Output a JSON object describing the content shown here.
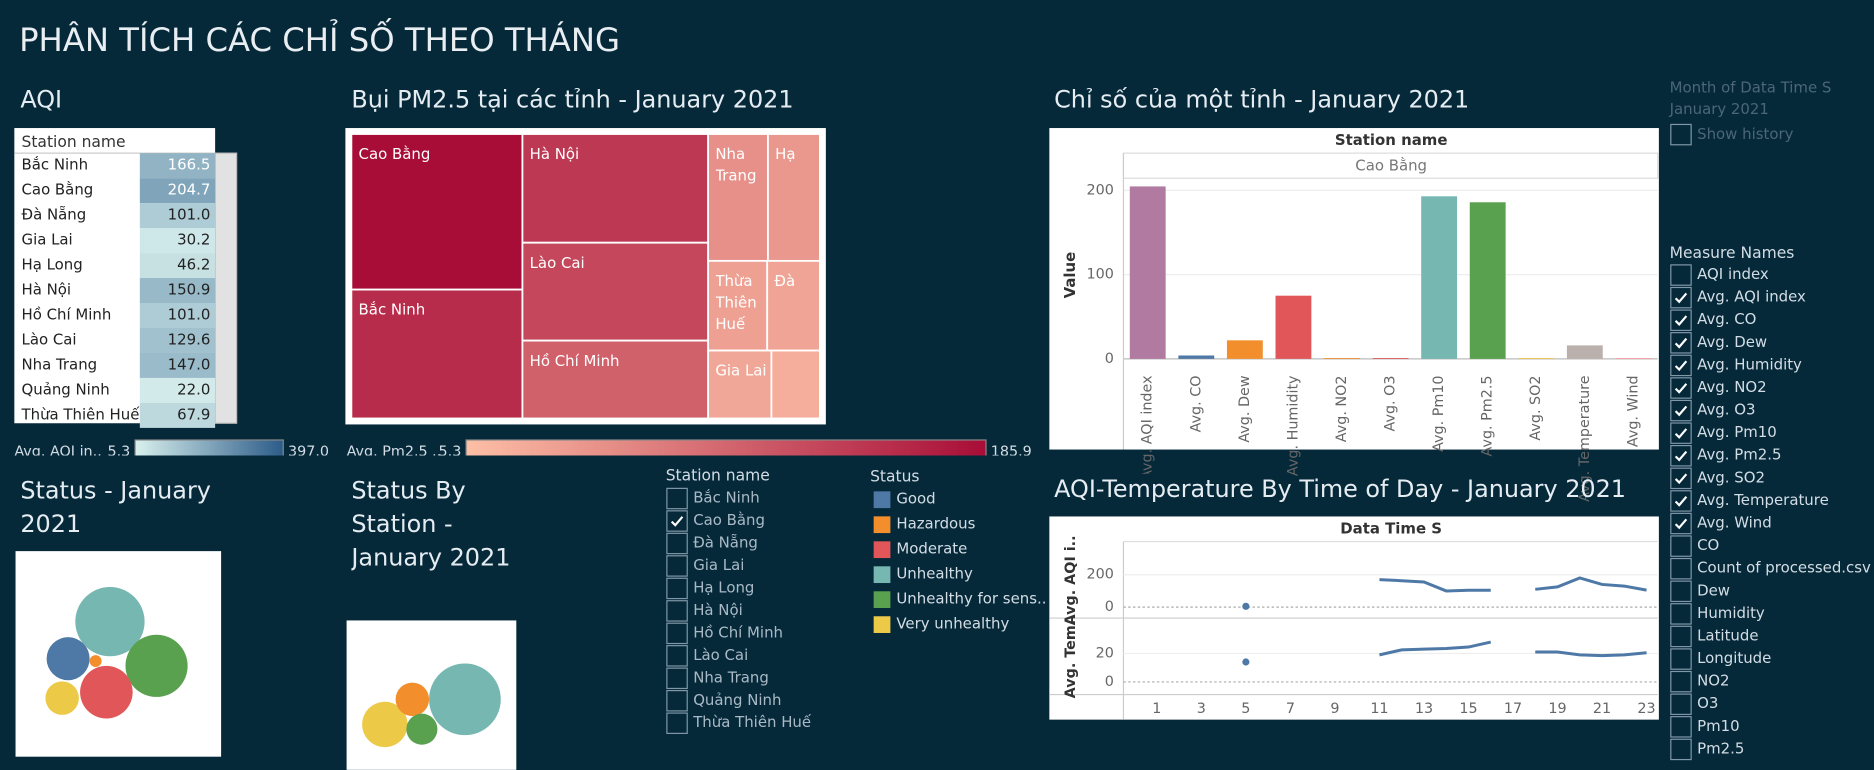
{
  "title": "PHÂN TÍCH CÁC CHỈ SỐ THEO THÁNG",
  "chart_data": [
    {
      "type": "table",
      "title": "AQI",
      "column_header": "Station name",
      "categories": [
        "Bắc Ninh",
        "Cao Bằng",
        "Đà Nẵng",
        "Gia Lai",
        "Hạ Long",
        "Hà Nội",
        "Hồ Chí Minh",
        "Lào Cai",
        "Nha Trang",
        "Quảng Ninh",
        "Thừa Thiên Huế"
      ],
      "values": [
        166.5,
        204.7,
        101,
        30.2,
        46.2,
        150.9,
        101,
        129.6,
        147,
        22,
        67.9
      ],
      "value_labels": [
        "166.5",
        "204.7",
        "101.0",
        "30.2",
        "46.2",
        "150.9",
        "101.0",
        "129.6",
        "147.0",
        "22.0",
        "67.9"
      ],
      "legend_title": "Avg. AQI in..",
      "clim": [
        5.3,
        397
      ],
      "cticks": [
        5.3,
        {
          "value": 397,
          "label": "397.0"
        }
      ],
      "colors": [
        "#d9f1ee",
        "#2b5b88"
      ]
    },
    {
      "type": "treemap",
      "title": "Bụi PM2.5 tại các tỉnh - January 2021",
      "categories": [
        "Cao Bằng",
        "Bắc Ninh",
        "Hà Nội",
        "Lào Cai",
        "Hồ Chí Minh",
        "Nha Trang",
        "Hạ",
        "Thừa Thiên Huế",
        "Đà",
        "Gia Lai",
        null
      ],
      "values": [
        185.9,
        154,
        141,
        127,
        101,
        53,
        46,
        37,
        33,
        30,
        23
      ],
      "legend_title": "Avg. Pm2.5 ..",
      "clim": [
        5.3,
        185.9
      ],
      "cticks": [
        5.3,
        185.9
      ],
      "colors": [
        "#fdbfa6",
        "#a80d37"
      ]
    },
    {
      "type": "bar",
      "title": "Chỉ số của một tỉnh - January 2021",
      "header": "Station name",
      "subheader": "Cao Bằng",
      "y_label": "Value",
      "categories": [
        "Avg. AQI index",
        "Avg. CO",
        "Avg. Dew",
        "Avg. Humidity",
        "Avg. NO2",
        "Avg. O3",
        "Avg. Pm10",
        "Avg. Pm2.5",
        "Avg. SO2",
        "Avg. Temperature",
        "Avg. Wind"
      ],
      "values": [
        204.7,
        4,
        22,
        75,
        1,
        1,
        193,
        185.9,
        1,
        16,
        1
      ],
      "colors": [
        "#b07aa1",
        "#4e79a7",
        "#f28e2b",
        "#e15759",
        "#f28e2b",
        "#e15759",
        "#76b7b2",
        "#59a14f",
        "#edc948",
        "#bab0ac",
        "#ff9da7"
      ],
      "ylim": [
        -14,
        213
      ],
      "yticks": [
        0,
        100,
        200
      ],
      "grid": true
    },
    {
      "type": "line",
      "title": "AQI-Temperature By Time of Day - January 2021",
      "header": "Data Time S",
      "x": [
        0,
        1,
        2,
        3,
        4,
        5,
        6,
        7,
        8,
        9,
        10,
        11,
        12,
        13,
        14,
        15,
        16,
        17,
        18,
        19,
        20,
        21,
        22,
        23
      ],
      "xlim": [
        -0.5,
        23.5
      ],
      "xticks": [
        1,
        3,
        5,
        7,
        9,
        11,
        13,
        15,
        17,
        19,
        21,
        23
      ],
      "series": [
        {
          "name": "Avg. AQI i..",
          "color": "#4e79a7",
          "values": [
            null,
            null,
            null,
            null,
            null,
            5,
            null,
            null,
            null,
            null,
            null,
            170,
            163,
            155,
            100,
            104,
            104,
            null,
            110,
            125,
            180,
            140,
            130,
            105
          ]
        },
        {
          "name": "Avg. Tem..",
          "color": "#4e79a7",
          "axis": "y2",
          "values": [
            null,
            null,
            null,
            null,
            null,
            14,
            null,
            null,
            null,
            null,
            null,
            19,
            22.5,
            23,
            23.5,
            24.5,
            28,
            null,
            21,
            21,
            19,
            18.5,
            19,
            20.5
          ]
        }
      ],
      "ylim": [
        -60,
        390
      ],
      "yticks": [
        0,
        200
      ],
      "y2lim": [
        -8,
        44
      ],
      "y2ticks": [
        0,
        20
      ],
      "grid": true
    },
    {
      "type": "bubble",
      "title": "Status - January 2021",
      "values": [
        841,
        676,
        484,
        324,
        196,
        25
      ],
      "colors": [
        "#76b7b2",
        "#59a14f",
        "#e15759",
        "#4e79a7",
        "#edc948",
        "#f28e2b"
      ]
    },
    {
      "type": "bubble",
      "title": "Status By Station - January 2021",
      "values": [
        900,
        361,
        196,
        169
      ],
      "colors": [
        "#76b7b2",
        "#edc948",
        "#f28e2b",
        "#59a14f"
      ]
    }
  ],
  "station_filter": {
    "title": "Station name",
    "items": [
      {
        "label": "Bắc Ninh",
        "checked": false
      },
      {
        "label": "Cao Bằng",
        "checked": true
      },
      {
        "label": "Đà Nẵng",
        "checked": false
      },
      {
        "label": "Gia Lai",
        "checked": false
      },
      {
        "label": "Hạ Long",
        "checked": false
      },
      {
        "label": "Hà Nội",
        "checked": false
      },
      {
        "label": "Hồ Chí Minh",
        "checked": false
      },
      {
        "label": "Lào Cai",
        "checked": false
      },
      {
        "label": "Nha Trang",
        "checked": false
      },
      {
        "label": "Quảng Ninh",
        "checked": false
      },
      {
        "label": "Thừa Thiên Huế",
        "checked": false
      }
    ]
  },
  "status_legend": {
    "title": "Status",
    "items": [
      {
        "label": "Good",
        "color": "#4e79a7"
      },
      {
        "label": "Hazardous",
        "color": "#f28e2b"
      },
      {
        "label": "Moderate",
        "color": "#e15759"
      },
      {
        "label": "Unhealthy",
        "color": "#76b7b2"
      },
      {
        "label": "Unhealthy for sens..",
        "color": "#59a14f"
      },
      {
        "label": "Very unhealthy",
        "color": "#edc948"
      }
    ]
  },
  "month_filter": {
    "title": "Month of Data Time S",
    "value": "January 2021",
    "show_history": "Show history"
  },
  "measure_filter": {
    "title": "Measure Names",
    "items": [
      {
        "label": "AQI index",
        "checked": false
      },
      {
        "label": "Avg. AQI index",
        "checked": true
      },
      {
        "label": "Avg. CO",
        "checked": true
      },
      {
        "label": "Avg. Dew",
        "checked": true
      },
      {
        "label": "Avg. Humidity",
        "checked": true
      },
      {
        "label": "Avg. NO2",
        "checked": true
      },
      {
        "label": "Avg. O3",
        "checked": true
      },
      {
        "label": "Avg. Pm10",
        "checked": true
      },
      {
        "label": "Avg. Pm2.5",
        "checked": true
      },
      {
        "label": "Avg. SO2",
        "checked": true
      },
      {
        "label": "Avg. Temperature",
        "checked": true
      },
      {
        "label": "Avg. Wind",
        "checked": true
      },
      {
        "label": "CO",
        "checked": false
      },
      {
        "label": "Count of processed.csv",
        "checked": false
      },
      {
        "label": "Dew",
        "checked": false
      },
      {
        "label": "Humidity",
        "checked": false
      },
      {
        "label": "Latitude",
        "checked": false
      },
      {
        "label": "Longitude",
        "checked": false
      },
      {
        "label": "NO2",
        "checked": false
      },
      {
        "label": "O3",
        "checked": false
      },
      {
        "label": "Pm10",
        "checked": false
      },
      {
        "label": "Pm2.5",
        "checked": false
      }
    ]
  }
}
